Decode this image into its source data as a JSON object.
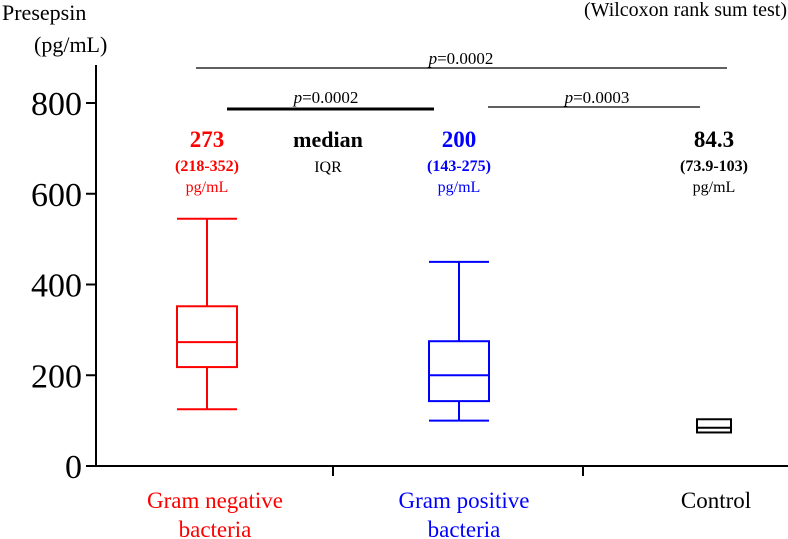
{
  "chart_data": {
    "type": "box",
    "ylabel_line1": "Presepsin",
    "ylabel_line2": "(pg/mL)",
    "test_note": "(Wilcoxon rank sum test)",
    "ylim": [
      0,
      850
    ],
    "yticks": [
      0,
      200,
      400,
      600,
      800
    ],
    "groups": [
      {
        "label_line1": "Gram negative",
        "label_line2": "bacteria",
        "color": "#ff0000",
        "min": 125,
        "q1": 218,
        "median": 273,
        "q3": 352,
        "max": 545,
        "median_text": "273",
        "iqr_text": "(218-352)",
        "unit_text": "pg/mL"
      },
      {
        "label_line1": "Gram positive",
        "label_line2": "bacteria",
        "color": "#0000ff",
        "min": 100,
        "q1": 143,
        "median": 200,
        "q3": 275,
        "max": 450,
        "median_text": "200",
        "iqr_text": "(143-275)",
        "unit_text": "pg/mL"
      },
      {
        "label_line1": "Control",
        "label_line2": "",
        "color": "#000000",
        "min": 73.9,
        "q1": 73.9,
        "median": 84.3,
        "q3": 103,
        "max": 103,
        "median_text": "84.3",
        "iqr_text": "(73.9-103)",
        "unit_text": "pg/mL"
      }
    ],
    "legend": {
      "median_label": "median",
      "iqr_label": "IQR"
    },
    "comparisons": [
      {
        "from": 0,
        "to": 2,
        "p_label": "p",
        "p_value": "=0.0002",
        "bold": false
      },
      {
        "from": 0,
        "to": 1,
        "p_label": "p",
        "p_value": "=0.0002",
        "bold": true
      },
      {
        "from": 1,
        "to": 2,
        "p_label": "p",
        "p_value": "=0.0003",
        "bold": false
      }
    ]
  }
}
